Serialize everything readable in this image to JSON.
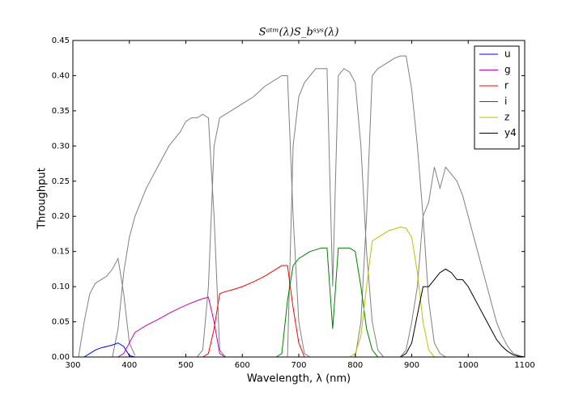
{
  "chart_data": {
    "type": "line",
    "title": "Sᵃᵗᵐ(λ)S_bˢʸˢ(λ)",
    "x_label": "Wavelength, λ (nm)",
    "y_label": "Throughput",
    "xlim": [
      300,
      1100
    ],
    "ylim": [
      0,
      0.45
    ],
    "xticks": [
      300,
      400,
      500,
      600,
      700,
      800,
      900,
      1000,
      1100
    ],
    "yticks": [
      {
        "value": 0,
        "label": "0.00"
      },
      {
        "value": 0.05,
        "label": "0.05"
      },
      {
        "value": 0.1,
        "label": "0.10"
      },
      {
        "value": 0.15,
        "label": "0.15"
      },
      {
        "value": 0.2,
        "label": "0.20"
      },
      {
        "value": 0.25,
        "label": "0.25"
      },
      {
        "value": 0.3,
        "label": "0.30"
      },
      {
        "value": 0.35,
        "label": "0.35"
      },
      {
        "value": 0.4,
        "label": "0.40"
      },
      {
        "value": 0.45,
        "label": "0.45"
      }
    ],
    "legend": "upper right",
    "series": [
      {
        "color": "#808080",
        "x": [
          310,
          320,
          330,
          340,
          350,
          360,
          370,
          380,
          390,
          400,
          410
        ],
        "values": [
          0,
          0.05,
          0.09,
          0.105,
          0.11,
          0.115,
          0.125,
          0.14,
          0.09,
          0.02,
          0.002
        ]
      },
      {
        "color": "#808080",
        "x": [
          370,
          380,
          390,
          400,
          410,
          420,
          430,
          440,
          450,
          460,
          470,
          480,
          490,
          500,
          510,
          520,
          530,
          540,
          550,
          560,
          570
        ],
        "values": [
          0,
          0.04,
          0.12,
          0.17,
          0.2,
          0.22,
          0.24,
          0.255,
          0.27,
          0.285,
          0.3,
          0.31,
          0.32,
          0.335,
          0.34,
          0.34,
          0.345,
          0.34,
          0.2,
          0.01,
          0
        ]
      },
      {
        "color": "#808080",
        "x": [
          520,
          530,
          540,
          550,
          560,
          570,
          580,
          600,
          620,
          640,
          660,
          670,
          680,
          690,
          700,
          710,
          720
        ],
        "values": [
          0,
          0.01,
          0.1,
          0.3,
          0.34,
          0.345,
          0.35,
          0.36,
          0.37,
          0.385,
          0.395,
          0.4,
          0.4,
          0.2,
          0.05,
          0.005,
          0
        ]
      },
      {
        "color": "#808080",
        "x": [
          680,
          690,
          700,
          710,
          720,
          730,
          740,
          750,
          760,
          770,
          780,
          790,
          800,
          810,
          820,
          830,
          840,
          850
        ],
        "values": [
          0,
          0.3,
          0.37,
          0.39,
          0.4,
          0.41,
          0.41,
          0.41,
          0.1,
          0.4,
          0.41,
          0.405,
          0.39,
          0.3,
          0.15,
          0.05,
          0.01,
          0
        ]
      },
      {
        "color": "#808080",
        "x": [
          800,
          810,
          820,
          830,
          840,
          850,
          860,
          870,
          880,
          890,
          900,
          910,
          920,
          930,
          940,
          950,
          960
        ],
        "values": [
          0,
          0.05,
          0.2,
          0.4,
          0.41,
          0.415,
          0.42,
          0.425,
          0.428,
          0.428,
          0.38,
          0.3,
          0.2,
          0.08,
          0.02,
          0.005,
          0
        ]
      },
      {
        "color": "#808080",
        "x": [
          880,
          890,
          900,
          910,
          920,
          930,
          940,
          950,
          960,
          970,
          980,
          990,
          1000,
          1010,
          1020,
          1030,
          1040,
          1050,
          1060,
          1070,
          1080,
          1090,
          1100
        ],
        "values": [
          0,
          0.01,
          0.05,
          0.1,
          0.2,
          0.22,
          0.27,
          0.24,
          0.27,
          0.26,
          0.25,
          0.23,
          0.2,
          0.17,
          0.14,
          0.11,
          0.08,
          0.05,
          0.03,
          0.015,
          0.005,
          0.002,
          0
        ]
      },
      {
        "name": "u",
        "color": "#0000ff",
        "x": [
          320,
          330,
          340,
          350,
          360,
          370,
          380,
          390,
          400,
          410
        ],
        "values": [
          0,
          0.005,
          0.01,
          0.013,
          0.015,
          0.017,
          0.02,
          0.015,
          0.002,
          0
        ]
      },
      {
        "name": "g",
        "color": "#bf00bf",
        "x": [
          380,
          390,
          400,
          410,
          420,
          430,
          450,
          470,
          490,
          510,
          530,
          540,
          550,
          560,
          570
        ],
        "values": [
          0,
          0.005,
          0.02,
          0.035,
          0.04,
          0.045,
          0.053,
          0.062,
          0.07,
          0.077,
          0.083,
          0.085,
          0.05,
          0.005,
          0
        ]
      },
      {
        "name": "r",
        "color": "#ff0000",
        "x": [
          530,
          540,
          550,
          560,
          570,
          580,
          600,
          620,
          640,
          660,
          670,
          680,
          690,
          700,
          710
        ],
        "values": [
          0,
          0.005,
          0.04,
          0.09,
          0.093,
          0.095,
          0.1,
          0.107,
          0.115,
          0.125,
          0.13,
          0.13,
          0.07,
          0.02,
          0
        ]
      },
      {
        "name": "i",
        "color": "#008000",
        "x": [
          660,
          670,
          680,
          690,
          700,
          720,
          740,
          750,
          760,
          770,
          790,
          800,
          810,
          820,
          830,
          840
        ],
        "values": [
          0,
          0.005,
          0.08,
          0.13,
          0.14,
          0.15,
          0.155,
          0.155,
          0.04,
          0.155,
          0.155,
          0.15,
          0.1,
          0.04,
          0.01,
          0
        ]
      },
      {
        "name": "z",
        "color": "#bfbf00",
        "x": [
          790,
          800,
          810,
          820,
          830,
          840,
          850,
          860,
          870,
          880,
          890,
          900,
          910,
          920,
          930,
          940
        ],
        "values": [
          0,
          0.005,
          0.03,
          0.1,
          0.165,
          0.17,
          0.175,
          0.18,
          0.182,
          0.185,
          0.183,
          0.17,
          0.12,
          0.05,
          0.01,
          0
        ]
      },
      {
        "name": "y4",
        "color": "#000000",
        "x": [
          880,
          890,
          900,
          910,
          920,
          930,
          940,
          950,
          960,
          970,
          980,
          990,
          1000,
          1010,
          1020,
          1030,
          1040,
          1050,
          1060,
          1070,
          1080,
          1090,
          1100
        ],
        "values": [
          0,
          0.005,
          0.02,
          0.06,
          0.1,
          0.1,
          0.11,
          0.12,
          0.125,
          0.12,
          0.11,
          0.11,
          0.1,
          0.085,
          0.07,
          0.055,
          0.04,
          0.025,
          0.015,
          0.008,
          0.003,
          0.001,
          0
        ]
      }
    ]
  }
}
